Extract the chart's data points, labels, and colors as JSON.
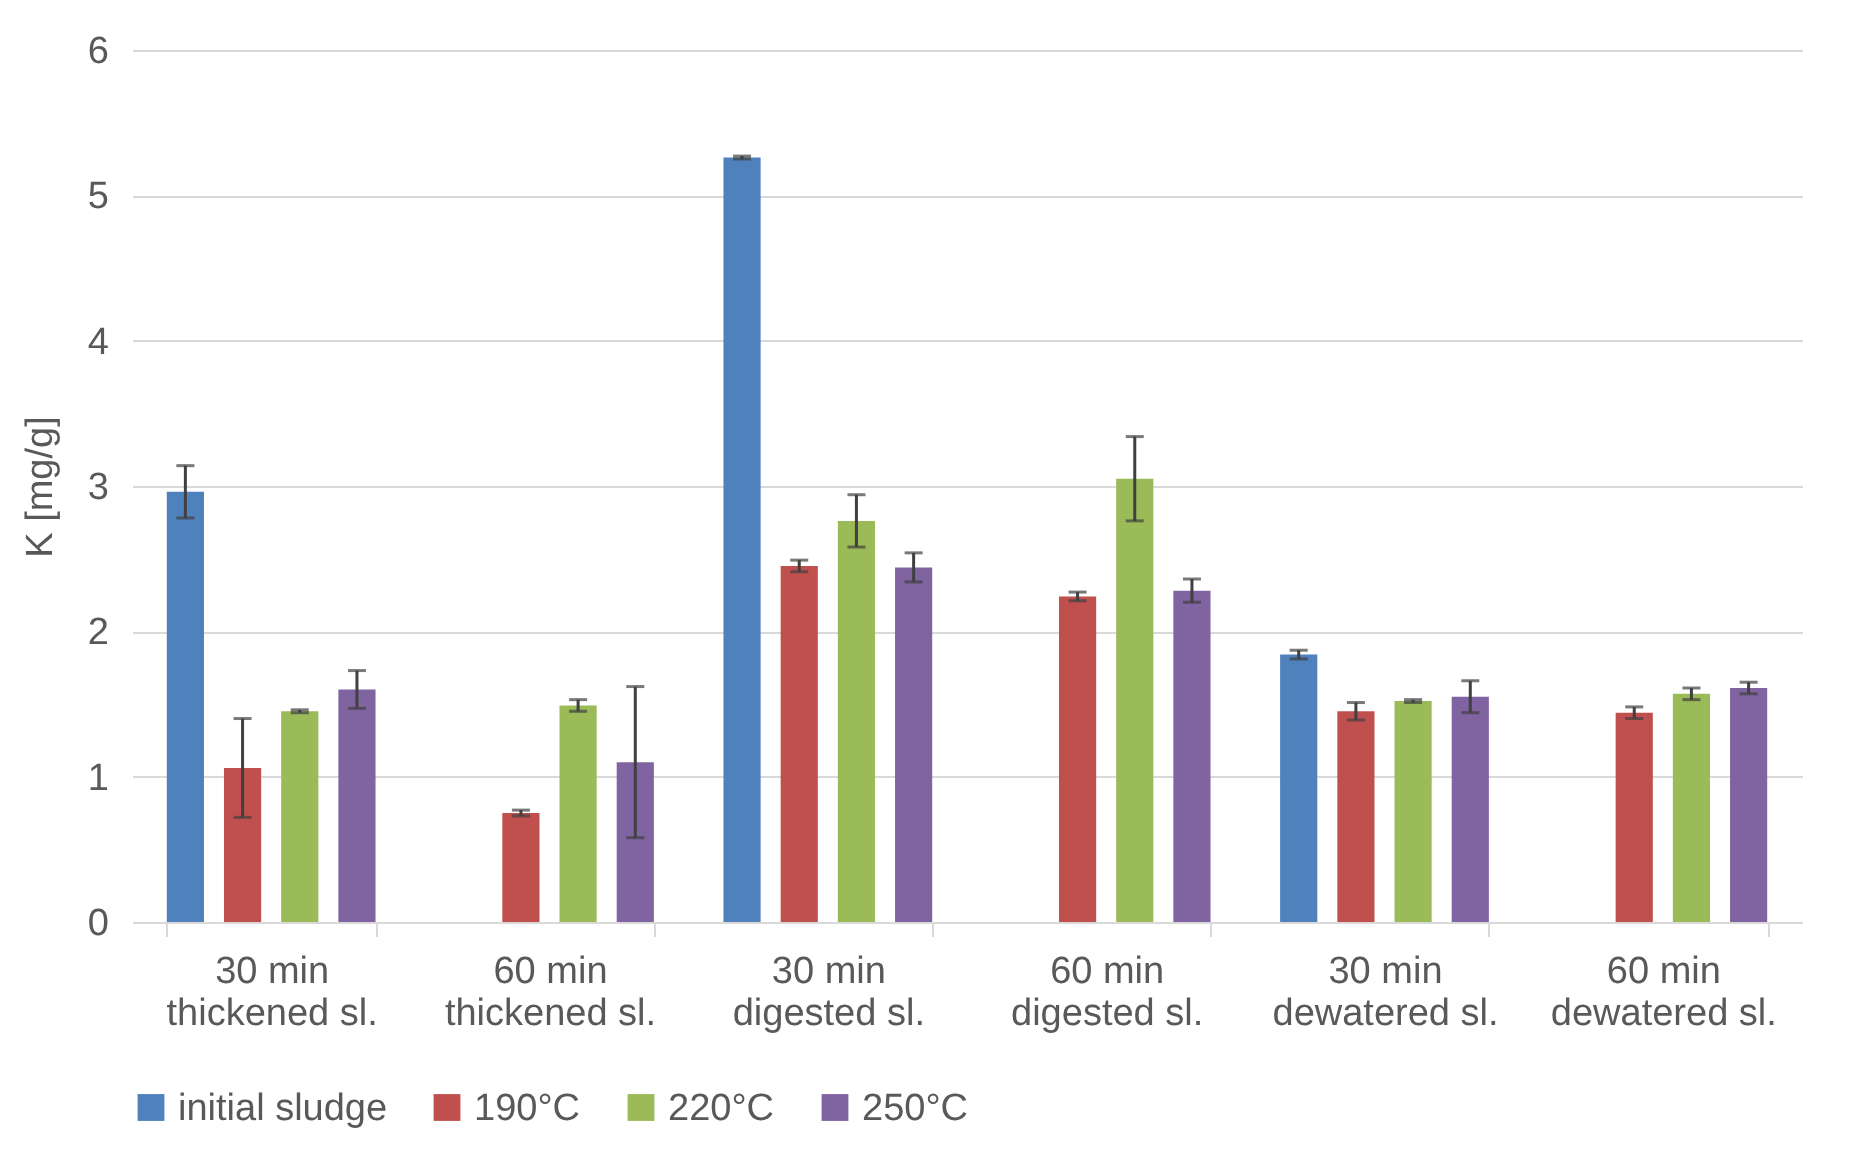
{
  "chart_data": {
    "type": "bar",
    "ylabel": "K [mg/g]",
    "categories": [
      "30 min thickened sl.",
      "60 min thickened sl.",
      "30 min digested sl.",
      "60 min digested sl.",
      "30 min dewatered sl.",
      "60 min dewatered sl."
    ],
    "series": [
      {
        "name": "initial sludge",
        "color": "#4f81bd",
        "values": [
          2.96,
          null,
          5.26,
          null,
          1.84,
          null
        ],
        "errors": [
          0.18,
          null,
          0.01,
          null,
          0.03,
          null
        ]
      },
      {
        "name": "190°C",
        "color": "#c0504d",
        "values": [
          1.06,
          0.75,
          2.45,
          2.24,
          1.45,
          1.44
        ],
        "errors": [
          0.34,
          0.02,
          0.04,
          0.03,
          0.06,
          0.04
        ]
      },
      {
        "name": "220°C",
        "color": "#9bbb59",
        "values": [
          1.45,
          1.49,
          2.76,
          3.05,
          1.52,
          1.57
        ],
        "errors": [
          0.01,
          0.04,
          0.18,
          0.29,
          0.01,
          0.04
        ]
      },
      {
        "name": "250°C",
        "color": "#8064a2",
        "values": [
          1.6,
          1.1,
          2.44,
          2.28,
          1.55,
          1.61
        ],
        "errors": [
          0.13,
          0.52,
          0.1,
          0.08,
          0.11,
          0.04
        ]
      }
    ],
    "ylim": [
      0,
      6
    ],
    "yticks": [
      0,
      1,
      2,
      3,
      4,
      5,
      6
    ],
    "grid": "y",
    "legend": "bottom"
  }
}
